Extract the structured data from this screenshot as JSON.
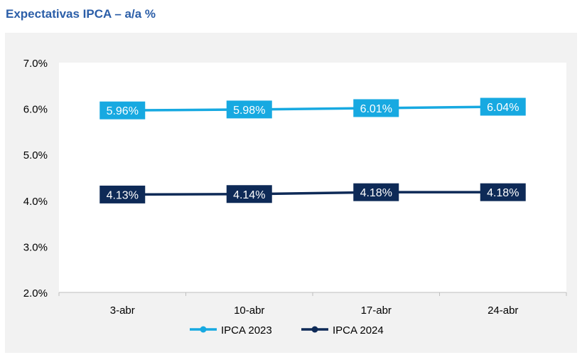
{
  "title": "Expectativas IPCA – a/a %",
  "chart_data": {
    "type": "line",
    "categories": [
      "3-abr",
      "10-abr",
      "17-abr",
      "24-abr"
    ],
    "series": [
      {
        "name": "IPCA 2023",
        "values": [
          5.96,
          5.98,
          6.01,
          6.04
        ],
        "labels": [
          "5.96%",
          "5.98%",
          "6.01%",
          "6.04%"
        ],
        "color": "#17a9e1"
      },
      {
        "name": "IPCA 2024",
        "values": [
          4.13,
          4.14,
          4.18,
          4.18
        ],
        "labels": [
          "4.13%",
          "4.14%",
          "4.18%",
          "4.18%"
        ],
        "color": "#0e2a57"
      }
    ],
    "ylim": [
      2.0,
      7.0
    ],
    "yticks": [
      "2.0%",
      "3.0%",
      "4.0%",
      "5.0%",
      "6.0%",
      "7.0%"
    ],
    "yticks_values": [
      2,
      3,
      4,
      5,
      6,
      7
    ],
    "grid": false,
    "legend": "bottom-center",
    "plot_background": "#ffffff",
    "panel_background": "#f2f2f2"
  }
}
